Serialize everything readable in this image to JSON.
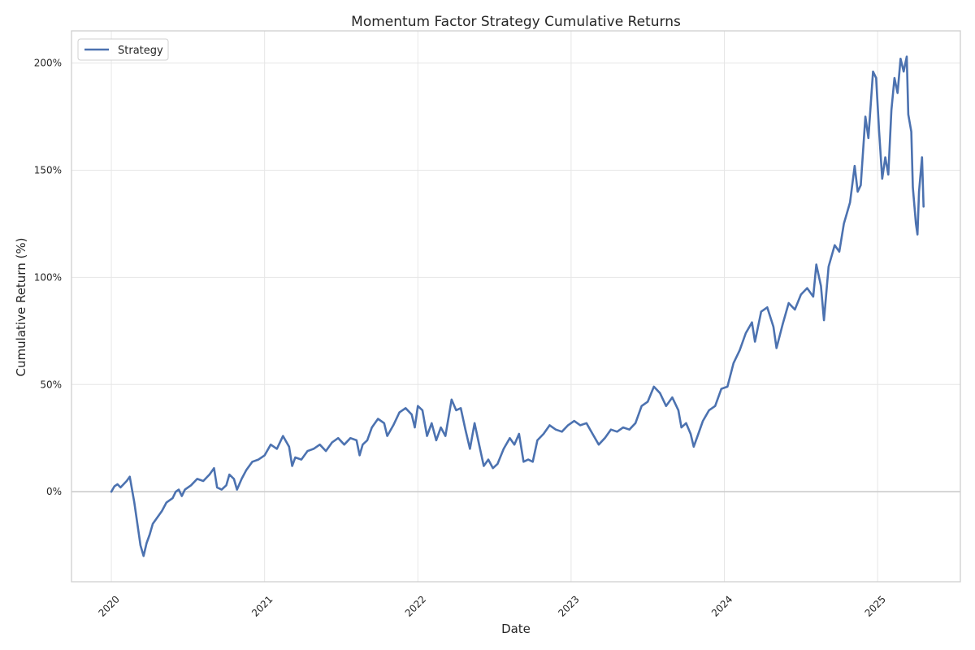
{
  "chart_data": {
    "type": "line",
    "title": "Momentum Factor Strategy Cumulative Returns",
    "xlabel": "Date",
    "ylabel": "Cumulative Return (%)",
    "x_ticks": [
      "2020",
      "2021",
      "2022",
      "2023",
      "2024",
      "2025"
    ],
    "y_ticks": [
      0,
      50,
      100,
      150,
      200
    ],
    "y_tick_suffix": "%",
    "xlim": [
      2019.74,
      2025.54
    ],
    "ylim": [
      -42,
      215
    ],
    "grid": true,
    "legend_position": "top-left",
    "reference_line_y": 0,
    "series": [
      {
        "name": "Strategy",
        "color": "#4c72b0",
        "points": [
          [
            2020.0,
            0.0
          ],
          [
            2020.02,
            2.5
          ],
          [
            2020.04,
            3.5
          ],
          [
            2020.06,
            2.0
          ],
          [
            2020.08,
            3.5
          ],
          [
            2020.1,
            5.0
          ],
          [
            2020.12,
            7.0
          ],
          [
            2020.15,
            -5.0
          ],
          [
            2020.17,
            -15.0
          ],
          [
            2020.19,
            -25.0
          ],
          [
            2020.21,
            -30.0
          ],
          [
            2020.23,
            -24.0
          ],
          [
            2020.25,
            -20.0
          ],
          [
            2020.27,
            -15.0
          ],
          [
            2020.3,
            -12.0
          ],
          [
            2020.33,
            -9.0
          ],
          [
            2020.36,
            -5.0
          ],
          [
            2020.4,
            -3.0
          ],
          [
            2020.42,
            0.0
          ],
          [
            2020.44,
            1.0
          ],
          [
            2020.46,
            -2.0
          ],
          [
            2020.48,
            1.0
          ],
          [
            2020.52,
            3.0
          ],
          [
            2020.56,
            6.0
          ],
          [
            2020.6,
            5.0
          ],
          [
            2020.64,
            8.0
          ],
          [
            2020.67,
            11.0
          ],
          [
            2020.69,
            2.0
          ],
          [
            2020.72,
            1.0
          ],
          [
            2020.75,
            3.0
          ],
          [
            2020.77,
            8.0
          ],
          [
            2020.8,
            6.0
          ],
          [
            2020.82,
            1.0
          ],
          [
            2020.85,
            6.0
          ],
          [
            2020.88,
            10.0
          ],
          [
            2020.92,
            14.0
          ],
          [
            2020.96,
            15.0
          ],
          [
            2021.0,
            17.0
          ],
          [
            2021.04,
            22.0
          ],
          [
            2021.08,
            20.0
          ],
          [
            2021.12,
            26.0
          ],
          [
            2021.16,
            21.0
          ],
          [
            2021.18,
            12.0
          ],
          [
            2021.2,
            16.0
          ],
          [
            2021.24,
            15.0
          ],
          [
            2021.28,
            19.0
          ],
          [
            2021.32,
            20.0
          ],
          [
            2021.36,
            22.0
          ],
          [
            2021.4,
            19.0
          ],
          [
            2021.44,
            23.0
          ],
          [
            2021.48,
            25.0
          ],
          [
            2021.52,
            22.0
          ],
          [
            2021.56,
            25.0
          ],
          [
            2021.6,
            24.0
          ],
          [
            2021.62,
            17.0
          ],
          [
            2021.64,
            22.0
          ],
          [
            2021.67,
            24.0
          ],
          [
            2021.7,
            30.0
          ],
          [
            2021.74,
            34.0
          ],
          [
            2021.78,
            32.0
          ],
          [
            2021.8,
            26.0
          ],
          [
            2021.84,
            31.0
          ],
          [
            2021.88,
            37.0
          ],
          [
            2021.92,
            39.0
          ],
          [
            2021.96,
            36.0
          ],
          [
            2021.98,
            30.0
          ],
          [
            2022.0,
            40.0
          ],
          [
            2022.03,
            38.0
          ],
          [
            2022.06,
            26.0
          ],
          [
            2022.09,
            32.0
          ],
          [
            2022.12,
            24.0
          ],
          [
            2022.15,
            30.0
          ],
          [
            2022.18,
            26.0
          ],
          [
            2022.22,
            43.0
          ],
          [
            2022.25,
            38.0
          ],
          [
            2022.28,
            39.0
          ],
          [
            2022.31,
            29.0
          ],
          [
            2022.34,
            20.0
          ],
          [
            2022.37,
            32.0
          ],
          [
            2022.4,
            22.0
          ],
          [
            2022.43,
            12.0
          ],
          [
            2022.46,
            15.0
          ],
          [
            2022.49,
            11.0
          ],
          [
            2022.52,
            13.0
          ],
          [
            2022.56,
            20.0
          ],
          [
            2022.6,
            25.0
          ],
          [
            2022.63,
            22.0
          ],
          [
            2022.66,
            27.0
          ],
          [
            2022.69,
            14.0
          ],
          [
            2022.72,
            15.0
          ],
          [
            2022.75,
            14.0
          ],
          [
            2022.78,
            24.0
          ],
          [
            2022.82,
            27.0
          ],
          [
            2022.86,
            31.0
          ],
          [
            2022.9,
            29.0
          ],
          [
            2022.94,
            28.0
          ],
          [
            2022.98,
            31.0
          ],
          [
            2023.02,
            33.0
          ],
          [
            2023.06,
            31.0
          ],
          [
            2023.1,
            32.0
          ],
          [
            2023.14,
            27.0
          ],
          [
            2023.18,
            22.0
          ],
          [
            2023.22,
            25.0
          ],
          [
            2023.26,
            29.0
          ],
          [
            2023.3,
            28.0
          ],
          [
            2023.34,
            30.0
          ],
          [
            2023.38,
            29.0
          ],
          [
            2023.42,
            32.0
          ],
          [
            2023.46,
            40.0
          ],
          [
            2023.5,
            42.0
          ],
          [
            2023.54,
            49.0
          ],
          [
            2023.58,
            46.0
          ],
          [
            2023.62,
            40.0
          ],
          [
            2023.66,
            44.0
          ],
          [
            2023.7,
            38.0
          ],
          [
            2023.72,
            30.0
          ],
          [
            2023.75,
            32.0
          ],
          [
            2023.78,
            27.0
          ],
          [
            2023.8,
            21.0
          ],
          [
            2023.83,
            27.0
          ],
          [
            2023.86,
            33.0
          ],
          [
            2023.9,
            38.0
          ],
          [
            2023.94,
            40.0
          ],
          [
            2023.98,
            48.0
          ],
          [
            2024.02,
            49.0
          ],
          [
            2024.06,
            60.0
          ],
          [
            2024.1,
            66.0
          ],
          [
            2024.14,
            74.0
          ],
          [
            2024.18,
            79.0
          ],
          [
            2024.2,
            70.0
          ],
          [
            2024.24,
            84.0
          ],
          [
            2024.28,
            86.0
          ],
          [
            2024.32,
            77.0
          ],
          [
            2024.34,
            67.0
          ],
          [
            2024.38,
            78.0
          ],
          [
            2024.42,
            88.0
          ],
          [
            2024.46,
            85.0
          ],
          [
            2024.5,
            92.0
          ],
          [
            2024.54,
            95.0
          ],
          [
            2024.58,
            91.0
          ],
          [
            2024.6,
            106.0
          ],
          [
            2024.63,
            96.0
          ],
          [
            2024.65,
            80.0
          ],
          [
            2024.68,
            105.0
          ],
          [
            2024.72,
            115.0
          ],
          [
            2024.75,
            112.0
          ],
          [
            2024.78,
            125.0
          ],
          [
            2024.82,
            135.0
          ],
          [
            2024.85,
            152.0
          ],
          [
            2024.87,
            140.0
          ],
          [
            2024.89,
            143.0
          ],
          [
            2024.92,
            175.0
          ],
          [
            2024.94,
            165.0
          ],
          [
            2024.97,
            196.0
          ],
          [
            2024.99,
            193.0
          ],
          [
            2025.01,
            168.0
          ],
          [
            2025.03,
            146.0
          ],
          [
            2025.05,
            156.0
          ],
          [
            2025.07,
            148.0
          ],
          [
            2025.09,
            178.0
          ],
          [
            2025.11,
            193.0
          ],
          [
            2025.13,
            186.0
          ],
          [
            2025.15,
            202.0
          ],
          [
            2025.17,
            196.0
          ],
          [
            2025.19,
            203.0
          ],
          [
            2025.2,
            176.0
          ],
          [
            2025.22,
            168.0
          ],
          [
            2025.23,
            142.0
          ],
          [
            2025.25,
            125.0
          ],
          [
            2025.26,
            120.0
          ],
          [
            2025.27,
            140.0
          ],
          [
            2025.29,
            156.0
          ],
          [
            2025.3,
            133.0
          ]
        ]
      }
    ]
  }
}
